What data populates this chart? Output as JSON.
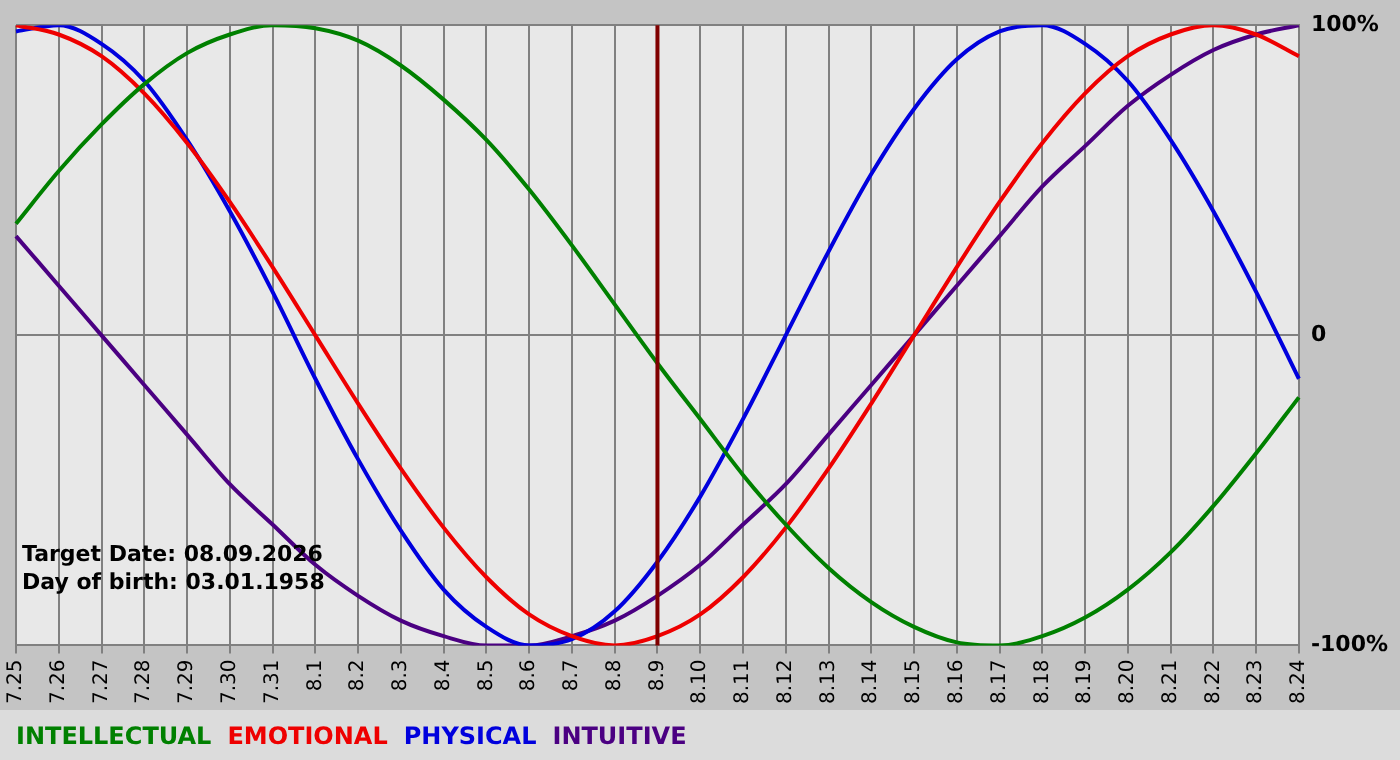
{
  "chart_data": {
    "type": "line",
    "categories": [
      "7.25",
      "7.26",
      "7.27",
      "7.28",
      "7.29",
      "7.30",
      "7.31",
      "8.1",
      "8.2",
      "8.3",
      "8.4",
      "8.5",
      "8.6",
      "8.7",
      "8.8",
      "8.9",
      "8.10",
      "8.11",
      "8.12",
      "8.13",
      "8.14",
      "8.15",
      "8.16",
      "8.17",
      "8.18",
      "8.19",
      "8.20",
      "8.21",
      "8.22",
      "8.23",
      "8.24"
    ],
    "series": [
      {
        "name": "INTELLECTUAL",
        "color": "#008000",
        "values": [
          36,
          53,
          68,
          81,
          91,
          97,
          100,
          99,
          95,
          87,
          76,
          63,
          47,
          29,
          10,
          -9,
          -27,
          -45,
          -61,
          -75,
          -86,
          -94,
          -99,
          -100,
          -97,
          -91,
          -82,
          -70,
          -55,
          -38,
          -20
        ]
      },
      {
        "name": "EMOTIONAL",
        "color": "#ee0000",
        "values": [
          100,
          97,
          90,
          78,
          62,
          43,
          22,
          0,
          -22,
          -43,
          -62,
          -78,
          -90,
          -97,
          -100,
          -97,
          -90,
          -78,
          -62,
          -43,
          -22,
          0,
          22,
          43,
          62,
          78,
          90,
          97,
          100,
          97,
          90
        ]
      },
      {
        "name": "PHYSICAL",
        "color": "#0000dd",
        "values": [
          98,
          100,
          94,
          82,
          63,
          40,
          14,
          -14,
          -40,
          -63,
          -82,
          -94,
          -100,
          -98,
          -89,
          -73,
          -52,
          -27,
          0,
          27,
          52,
          73,
          89,
          98,
          100,
          94,
          82,
          63,
          40,
          14,
          -14
        ]
      },
      {
        "name": "INTUITIVE",
        "color": "#4b0082",
        "values": [
          32,
          16,
          0,
          -16,
          -32,
          -48,
          -61,
          -74,
          -84,
          -92,
          -97,
          -100,
          -100,
          -97,
          -92,
          -84,
          -74,
          -61,
          -48,
          -32,
          -16,
          0,
          16,
          32,
          48,
          61,
          74,
          84,
          92,
          97,
          100
        ]
      }
    ],
    "ylim": [
      -100,
      100
    ],
    "yticks": [
      {
        "value": -100,
        "label": "-100%"
      },
      0,
      {
        "value": 100,
        "label": "100%"
      }
    ],
    "grid": true,
    "legend": "bottom",
    "marker": "none",
    "ref_lines": [
      {
        "axis": "x",
        "value": "8.9",
        "color": "#800000"
      }
    ],
    "annotations": [
      "Target Date: 08.09.2026",
      "Day of birth: 03.01.1958"
    ]
  }
}
